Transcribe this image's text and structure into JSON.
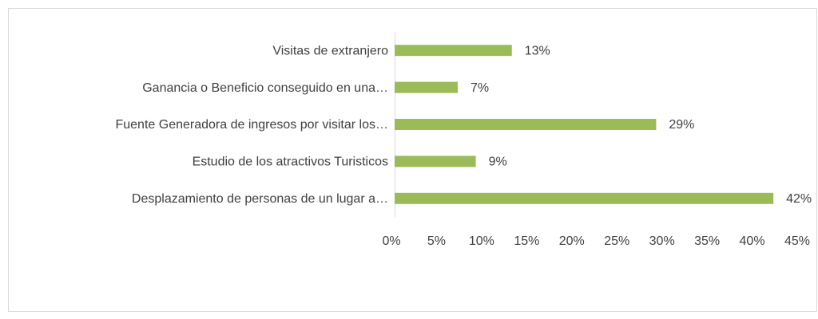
{
  "chart_data": {
    "type": "bar",
    "orientation": "horizontal",
    "categories": [
      "Visitas de extranjero",
      "Ganancia o Beneficio conseguido en una…",
      "Fuente Generadora de ingresos por visitar los…",
      "Estudio de los atractivos Turisticos",
      "Desplazamiento de personas de un lugar a…"
    ],
    "values": [
      13,
      7,
      29,
      9,
      42
    ],
    "value_labels": [
      "13%",
      "7%",
      "29%",
      "9%",
      "42%"
    ],
    "color": "#9bbb59",
    "xlim": [
      0,
      45
    ],
    "xticks": [
      {
        "value": 0,
        "label": "0%"
      },
      {
        "value": 5,
        "label": "5%"
      },
      {
        "value": 10,
        "label": "10%"
      },
      {
        "value": 15,
        "label": "15%"
      },
      {
        "value": 20,
        "label": "20%"
      },
      {
        "value": 25,
        "label": "25%"
      },
      {
        "value": 30,
        "label": "30%"
      },
      {
        "value": 35,
        "label": "35%"
      },
      {
        "value": 40,
        "label": "40%"
      },
      {
        "value": 45,
        "label": "45%"
      }
    ],
    "grid": false
  }
}
